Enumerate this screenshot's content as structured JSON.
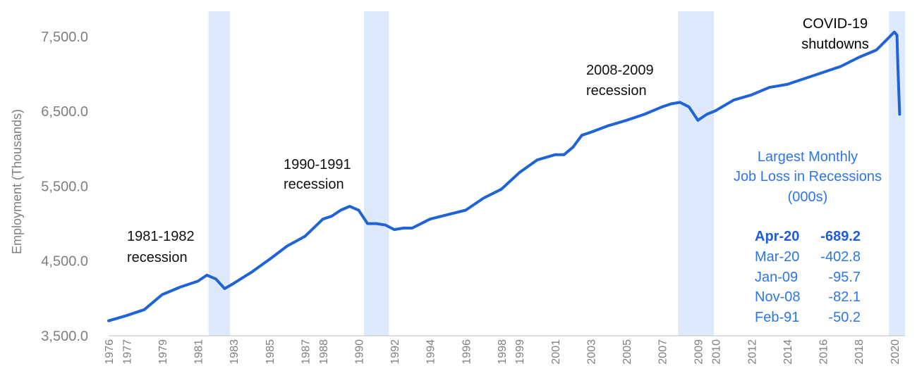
{
  "chart_data": {
    "type": "line",
    "title": "",
    "xlabel": "",
    "ylabel": "Employment (Thousands)",
    "ylim": [
      3500,
      7800
    ],
    "y_ticks": [
      "3,500.0",
      "4,500.0",
      "5,500.0",
      "6,500.0",
      "7,500.0"
    ],
    "y_tick_values": [
      3500,
      4500,
      5500,
      6500,
      7500
    ],
    "x_ticks": [
      "1976",
      "1977",
      "1979",
      "1981",
      "1983",
      "1985",
      "1987",
      "1988",
      "1990",
      "1992",
      "1994",
      "1996",
      "1998",
      "1999",
      "2001",
      "2003",
      "2005",
      "2007",
      "2009",
      "2010",
      "2012",
      "2014",
      "2016",
      "2018",
      "2020"
    ],
    "x_tick_values": [
      1976.0,
      1977.0,
      1979.0,
      1981.0,
      1983.0,
      1985.0,
      1987.0,
      1988.0,
      1990.0,
      1992.0,
      1994.0,
      1996.0,
      1998.0,
      1999.0,
      2001.0,
      2003.0,
      2005.0,
      2007.0,
      2009.0,
      2010.0,
      2012.0,
      2014.0,
      2016.0,
      2018.0,
      2020.0
    ],
    "xlim": [
      1976.0,
      2020.6
    ],
    "recessions": [
      {
        "start": 1981.6,
        "end": 1982.8
      },
      {
        "start": 1990.3,
        "end": 1991.7
      },
      {
        "start": 2007.9,
        "end": 2009.9
      },
      {
        "start": 2019.7,
        "end": 2020.6
      }
    ],
    "series": [
      {
        "line_color": "#1f63d6",
        "x": [
          1976.0,
          1977.0,
          1978.0,
          1979.0,
          1980.0,
          1981.0,
          1981.5,
          1982.0,
          1982.5,
          1983.0,
          1984.0,
          1985.0,
          1986.0,
          1987.0,
          1988.0,
          1988.5,
          1989.0,
          1989.5,
          1990.0,
          1990.5,
          1991.0,
          1991.5,
          1992.0,
          1992.5,
          1993.0,
          1994.0,
          1995.0,
          1996.0,
          1997.0,
          1998.0,
          1999.0,
          2000.0,
          2001.0,
          2001.5,
          2002.0,
          2002.5,
          2003.0,
          2004.0,
          2005.0,
          2006.0,
          2007.0,
          2007.5,
          2008.0,
          2008.5,
          2009.0,
          2009.5,
          2010.0,
          2011.0,
          2012.0,
          2013.0,
          2014.0,
          2015.0,
          2016.0,
          2017.0,
          2018.0,
          2019.0,
          2019.5,
          2020.0,
          2020.15,
          2020.2,
          2020.3
        ],
        "values": [
          3700,
          3770,
          3850,
          4050,
          4150,
          4230,
          4310,
          4260,
          4130,
          4200,
          4350,
          4520,
          4700,
          4830,
          5060,
          5100,
          5180,
          5230,
          5180,
          5000,
          5000,
          4980,
          4920,
          4940,
          4940,
          5060,
          5120,
          5180,
          5340,
          5460,
          5680,
          5850,
          5920,
          5920,
          6020,
          6180,
          6220,
          6310,
          6380,
          6460,
          6560,
          6600,
          6620,
          6560,
          6380,
          6460,
          6510,
          6650,
          6720,
          6820,
          6860,
          6940,
          7020,
          7100,
          7220,
          7320,
          7440,
          7560,
          7520,
          7100,
          6460
        ]
      }
    ],
    "annotations": [
      {
        "line1": "1981-1982",
        "line2": "recession"
      },
      {
        "line1": "1990-1991",
        "line2": "recession"
      },
      {
        "line1": "2008-2009",
        "line2": "recession"
      },
      {
        "line1": "COVID-19",
        "line2": "shutdowns"
      }
    ],
    "loss_box": {
      "title_lines": [
        "Largest Monthly",
        "Job Loss in Recessions",
        "(000s)"
      ],
      "rows": [
        {
          "month": "Apr-20",
          "value": "-689.2"
        },
        {
          "month": "Mar-20",
          "value": "-402.8"
        },
        {
          "month": "Jan-09",
          "value": "-95.7"
        },
        {
          "month": "Nov-08",
          "value": "-82.1"
        },
        {
          "month": "Feb-91",
          "value": "-50.2"
        }
      ]
    },
    "band_color": "#deeafc"
  }
}
